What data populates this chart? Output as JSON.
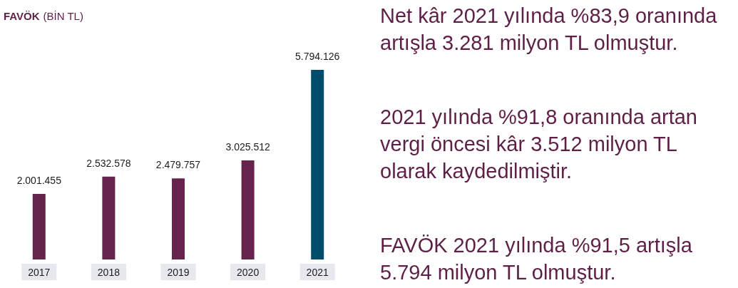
{
  "chart_data": {
    "type": "bar",
    "title": "FAVÖK (BİN TL)",
    "categories": [
      "2017",
      "2018",
      "2019",
      "2020",
      "2021"
    ],
    "values": [
      2001455,
      2532578,
      2479757,
      3025512,
      5794126
    ],
    "colors": [
      "#66244c",
      "#66244c",
      "#66244c",
      "#66244c",
      "#004d6b"
    ],
    "value_labels": [
      "2.001.455",
      "2.532.578",
      "2.479.757",
      "3.025.512",
      "5.794.126"
    ],
    "grid": false,
    "annotations": [
      "Net kâr 2021 yılında %83,9 oranında artışla 3.281 milyon TL olmuştur.",
      "2021 yılında %91,8 oranında artan vergi öncesi kâr 3.512 milyon TL olarak kaydedilmiştir.",
      "FAVÖK 2021 yılında %91,5 artışla 5.794 milyon TL olmuştur."
    ]
  }
}
